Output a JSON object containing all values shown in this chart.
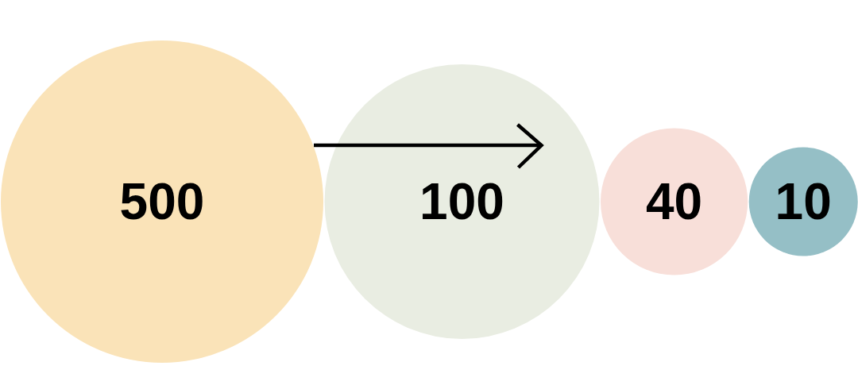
{
  "chart_data": {
    "type": "other",
    "categories": [
      null,
      null,
      null,
      null
    ],
    "values": [
      500,
      100,
      40,
      10
    ],
    "colors": [
      "#fae3b8",
      "#e9ede2",
      "#f8dfd9",
      "#95bfc6"
    ],
    "data_labels": true
  }
}
